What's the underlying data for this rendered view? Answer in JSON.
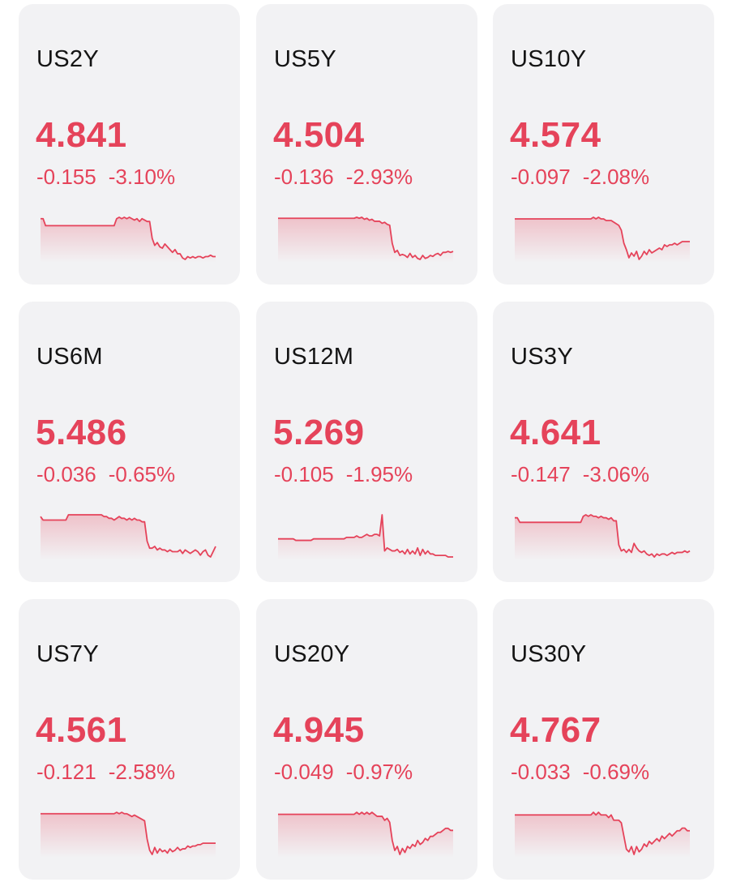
{
  "colors": {
    "down": "#e5435a",
    "card_bg": "#f2f2f4",
    "symbol_text": "#141414"
  },
  "quotes": [
    {
      "symbol": "US2Y",
      "price": "4.841",
      "change": "-0.155",
      "change_pct": "-3.10%",
      "direction": "down",
      "sparkline": [
        4.996,
        4.996,
        4.991,
        4.991,
        4.991,
        4.991,
        4.991,
        4.991,
        4.991,
        4.991,
        4.991,
        4.991,
        4.991,
        4.991,
        4.991,
        4.991,
        4.991,
        4.991,
        4.991,
        4.991,
        4.991,
        4.991,
        4.991,
        4.991,
        4.991,
        4.991,
        4.991,
        4.991,
        4.991,
        4.991,
        4.996,
        4.997,
        4.996,
        4.997,
        4.996,
        4.997,
        4.996,
        4.995,
        4.996,
        4.994,
        4.996,
        4.995,
        4.994,
        4.994,
        4.982,
        4.977,
        4.979,
        4.976,
        4.975,
        4.978,
        4.976,
        4.974,
        4.972,
        4.974,
        4.971,
        4.971,
        4.968,
        4.967,
        4.969,
        4.968,
        4.969,
        4.968,
        4.969,
        4.969,
        4.968,
        4.969,
        4.969,
        4.97,
        4.969,
        4.969
      ]
    },
    {
      "symbol": "US5Y",
      "price": "4.504",
      "change": "-0.136",
      "change_pct": "-2.93%",
      "direction": "down",
      "sparkline": [
        4.64,
        4.64,
        4.64,
        4.64,
        4.64,
        4.64,
        4.64,
        4.64,
        4.64,
        4.64,
        4.64,
        4.64,
        4.64,
        4.64,
        4.64,
        4.64,
        4.64,
        4.64,
        4.64,
        4.64,
        4.64,
        4.64,
        4.64,
        4.64,
        4.64,
        4.64,
        4.64,
        4.64,
        4.64,
        4.64,
        4.64,
        4.641,
        4.64,
        4.641,
        4.639,
        4.64,
        4.638,
        4.639,
        4.637,
        4.637,
        4.637,
        4.635,
        4.636,
        4.634,
        4.633,
        4.615,
        4.606,
        4.608,
        4.603,
        4.604,
        4.603,
        4.601,
        4.605,
        4.601,
        4.603,
        4.6,
        4.599,
        4.603,
        4.6,
        4.601,
        4.603,
        4.602,
        4.604,
        4.605,
        4.603,
        4.606,
        4.606,
        4.607,
        4.606,
        4.607
      ]
    },
    {
      "symbol": "US10Y",
      "price": "4.574",
      "change": "-0.097",
      "change_pct": "-2.08%",
      "direction": "down",
      "sparkline": [
        4.671,
        4.671,
        4.671,
        4.671,
        4.671,
        4.671,
        4.671,
        4.671,
        4.671,
        4.671,
        4.671,
        4.671,
        4.671,
        4.671,
        4.671,
        4.671,
        4.671,
        4.671,
        4.671,
        4.671,
        4.671,
        4.671,
        4.671,
        4.671,
        4.671,
        4.671,
        4.671,
        4.671,
        4.671,
        4.671,
        4.671,
        4.672,
        4.671,
        4.672,
        4.671,
        4.671,
        4.67,
        4.67,
        4.67,
        4.669,
        4.668,
        4.667,
        4.664,
        4.656,
        4.652,
        4.647,
        4.65,
        4.648,
        4.651,
        4.646,
        4.648,
        4.651,
        4.649,
        4.652,
        4.65,
        4.651,
        4.652,
        4.653,
        4.652,
        4.655,
        4.654,
        4.655,
        4.655,
        4.656,
        4.655,
        4.656,
        4.657,
        4.657,
        4.657,
        4.657
      ]
    },
    {
      "symbol": "US6M",
      "price": "5.486",
      "change": "-0.036",
      "change_pct": "-0.65%",
      "direction": "down",
      "sparkline": [
        5.522,
        5.52,
        5.52,
        5.52,
        5.52,
        5.52,
        5.52,
        5.52,
        5.52,
        5.52,
        5.52,
        5.523,
        5.523,
        5.523,
        5.523,
        5.523,
        5.523,
        5.523,
        5.523,
        5.523,
        5.523,
        5.523,
        5.523,
        5.523,
        5.523,
        5.522,
        5.522,
        5.521,
        5.521,
        5.52,
        5.521,
        5.522,
        5.521,
        5.521,
        5.52,
        5.521,
        5.52,
        5.521,
        5.52,
        5.52,
        5.519,
        5.519,
        5.508,
        5.504,
        5.504,
        5.505,
        5.503,
        5.504,
        5.503,
        5.503,
        5.502,
        5.503,
        5.502,
        5.502,
        5.502,
        5.503,
        5.501,
        5.503,
        5.502,
        5.501,
        5.502,
        5.503,
        5.502,
        5.5,
        5.502,
        5.503,
        5.5,
        5.499,
        5.502,
        5.505
      ]
    },
    {
      "symbol": "US12M",
      "price": "5.269",
      "change": "-0.105",
      "change_pct": "-1.95%",
      "direction": "down",
      "sparkline": [
        5.374,
        5.374,
        5.374,
        5.374,
        5.374,
        5.374,
        5.374,
        5.373,
        5.373,
        5.373,
        5.373,
        5.373,
        5.373,
        5.373,
        5.374,
        5.374,
        5.374,
        5.374,
        5.374,
        5.374,
        5.374,
        5.374,
        5.374,
        5.374,
        5.374,
        5.374,
        5.374,
        5.375,
        5.375,
        5.375,
        5.375,
        5.376,
        5.375,
        5.375,
        5.376,
        5.377,
        5.376,
        5.376,
        5.377,
        5.377,
        5.376,
        5.39,
        5.366,
        5.368,
        5.367,
        5.366,
        5.366,
        5.367,
        5.365,
        5.366,
        5.364,
        5.367,
        5.364,
        5.366,
        5.364,
        5.368,
        5.363,
        5.367,
        5.364,
        5.366,
        5.364,
        5.364,
        5.363,
        5.363,
        5.363,
        5.363,
        5.363,
        5.362,
        5.362,
        5.362
      ]
    },
    {
      "symbol": "US3Y",
      "price": "4.641",
      "change": "-0.147",
      "change_pct": "-3.06%",
      "direction": "down",
      "sparkline": [
        4.788,
        4.788,
        4.785,
        4.785,
        4.785,
        4.785,
        4.785,
        4.785,
        4.785,
        4.785,
        4.785,
        4.785,
        4.785,
        4.785,
        4.785,
        4.785,
        4.785,
        4.785,
        4.785,
        4.785,
        4.785,
        4.785,
        4.785,
        4.785,
        4.785,
        4.785,
        4.785,
        4.789,
        4.79,
        4.789,
        4.79,
        4.789,
        4.789,
        4.788,
        4.789,
        4.788,
        4.788,
        4.787,
        4.788,
        4.786,
        4.786,
        4.77,
        4.766,
        4.767,
        4.765,
        4.767,
        4.765,
        4.771,
        4.768,
        4.766,
        4.765,
        4.766,
        4.764,
        4.763,
        4.764,
        4.762,
        4.764,
        4.763,
        4.764,
        4.764,
        4.763,
        4.764,
        4.765,
        4.764,
        4.765,
        4.765,
        4.765,
        4.766,
        4.765,
        4.766
      ]
    },
    {
      "symbol": "US7Y",
      "price": "4.561",
      "change": "-0.121",
      "change_pct": "-2.58%",
      "direction": "down",
      "sparkline": [
        4.682,
        4.682,
        4.682,
        4.682,
        4.682,
        4.682,
        4.682,
        4.682,
        4.682,
        4.682,
        4.682,
        4.682,
        4.682,
        4.682,
        4.682,
        4.682,
        4.682,
        4.682,
        4.682,
        4.682,
        4.682,
        4.682,
        4.682,
        4.682,
        4.682,
        4.682,
        4.682,
        4.682,
        4.682,
        4.682,
        4.683,
        4.682,
        4.683,
        4.682,
        4.682,
        4.681,
        4.68,
        4.681,
        4.68,
        4.679,
        4.678,
        4.677,
        4.664,
        4.656,
        4.653,
        4.658,
        4.654,
        4.657,
        4.655,
        4.656,
        4.654,
        4.657,
        4.655,
        4.656,
        4.658,
        4.656,
        4.657,
        4.657,
        4.659,
        4.658,
        4.659,
        4.659,
        4.66,
        4.66,
        4.661,
        4.661,
        4.661,
        4.661,
        4.661,
        4.661
      ]
    },
    {
      "symbol": "US20Y",
      "price": "4.945",
      "change": "-0.049",
      "change_pct": "-0.97%",
      "direction": "down",
      "sparkline": [
        4.994,
        4.994,
        4.994,
        4.994,
        4.994,
        4.994,
        4.994,
        4.994,
        4.994,
        4.994,
        4.994,
        4.994,
        4.994,
        4.994,
        4.994,
        4.994,
        4.994,
        4.994,
        4.994,
        4.994,
        4.994,
        4.994,
        4.994,
        4.994,
        4.994,
        4.994,
        4.994,
        4.994,
        4.994,
        4.994,
        4.994,
        4.995,
        4.994,
        4.995,
        4.994,
        4.995,
        4.994,
        4.995,
        4.994,
        4.993,
        4.993,
        4.993,
        4.991,
        4.992,
        4.99,
        4.981,
        4.976,
        4.978,
        4.974,
        4.977,
        4.975,
        4.978,
        4.977,
        4.979,
        4.978,
        4.981,
        4.979,
        4.98,
        4.982,
        4.981,
        4.983,
        4.983,
        4.984,
        4.985,
        4.985,
        4.986,
        4.987,
        4.987,
        4.986,
        4.986
      ]
    },
    {
      "symbol": "US30Y",
      "price": "4.767",
      "change": "-0.033",
      "change_pct": "-0.69%",
      "direction": "down",
      "sparkline": [
        4.8,
        4.8,
        4.8,
        4.8,
        4.8,
        4.8,
        4.8,
        4.8,
        4.8,
        4.8,
        4.8,
        4.8,
        4.8,
        4.8,
        4.8,
        4.8,
        4.8,
        4.8,
        4.8,
        4.8,
        4.8,
        4.8,
        4.8,
        4.8,
        4.8,
        4.8,
        4.8,
        4.8,
        4.8,
        4.8,
        4.8,
        4.801,
        4.8,
        4.801,
        4.8,
        4.8,
        4.8,
        4.799,
        4.8,
        4.798,
        4.798,
        4.798,
        4.797,
        4.792,
        4.787,
        4.786,
        4.788,
        4.785,
        4.788,
        4.786,
        4.787,
        4.789,
        4.788,
        4.79,
        4.789,
        4.79,
        4.791,
        4.79,
        4.792,
        4.791,
        4.792,
        4.793,
        4.792,
        4.793,
        4.794,
        4.794,
        4.795,
        4.795,
        4.794,
        4.794
      ]
    }
  ]
}
